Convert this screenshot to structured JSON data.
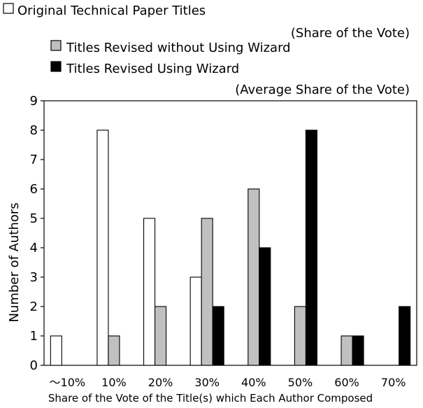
{
  "chart_data": {
    "type": "bar",
    "legend": [
      {
        "name": "Original Technical Paper Titles",
        "note": "(Share of the Vote)",
        "color": "#ffffff"
      },
      {
        "name": "Titles Revised without Using Wizard",
        "note": "",
        "color": "#c0c0c0"
      },
      {
        "name": "Titles Revised Using Wizard",
        "note": "(Average Share of the Vote)",
        "color": "#000000"
      }
    ],
    "legend_position": "top-left",
    "categories": [
      "～10%",
      "10%",
      "20%",
      "30%",
      "40%",
      "50%",
      "60%",
      "70%"
    ],
    "series": [
      {
        "name": "Original Technical Paper Titles",
        "values": [
          1,
          8,
          5,
          3,
          0,
          0,
          0,
          0
        ]
      },
      {
        "name": "Titles Revised without Using Wizard",
        "values": [
          0,
          1,
          2,
          5,
          6,
          2,
          1,
          0
        ]
      },
      {
        "name": "Titles Revised Using Wizard",
        "values": [
          0,
          0,
          0,
          2,
          4,
          8,
          1,
          2
        ]
      }
    ],
    "xlabel": "Share of the Vote of the Title(s) which Each Author Composed",
    "ylabel": "Number of Authors",
    "ylim": [
      0,
      9
    ],
    "yticks": [
      0,
      1,
      2,
      3,
      4,
      5,
      6,
      7,
      8,
      9
    ],
    "grid": false
  }
}
